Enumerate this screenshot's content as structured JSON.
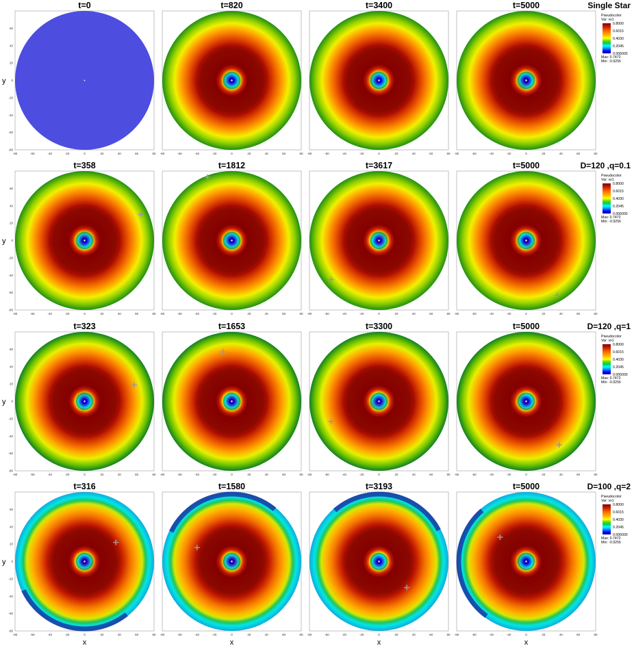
{
  "chart_data": {
    "type": "heatmap",
    "xlabel": "x",
    "ylabel": "y",
    "xlim": [
      -80,
      80
    ],
    "ylim": [
      -80,
      80
    ],
    "x_ticks": [
      "-80",
      "-60",
      "-40",
      "-20",
      "0",
      "20",
      "40",
      "60",
      "80"
    ],
    "y_ticks": [
      "60",
      "40",
      "20",
      "0",
      "-20",
      "-40",
      "-60",
      "-80"
    ],
    "legend": {
      "title": "Pseudocolor",
      "var": "Var: vx1",
      "ticks": [
        "0.8000",
        "0.6015",
        "0.4030",
        "0.2045",
        "0.006000"
      ],
      "max": "Max: 0.7472",
      "min": "Min: -0.9256",
      "colormap": [
        "#800000",
        "#cc1f00",
        "#ff6600",
        "#ffaa00",
        "#ffff00",
        "#99ee00",
        "#00cc55",
        "#00ffff",
        "#0099ff",
        "#0000ff",
        "#000080"
      ]
    },
    "rows": [
      {
        "label": "Single Star",
        "panels": [
          {
            "t": "t=0",
            "style": "flat",
            "companion": null
          },
          {
            "t": "t=820",
            "style": "disk",
            "companion": null
          },
          {
            "t": "t=3400",
            "style": "disk",
            "companion": null
          },
          {
            "t": "t=5000",
            "style": "disk",
            "companion": null
          }
        ]
      },
      {
        "label": "D=120 ,q=0.1",
        "panels": [
          {
            "t": "t=358",
            "style": "disk",
            "companion": [
              65,
              30
            ]
          },
          {
            "t": "t=1812",
            "style": "disk",
            "companion": [
              -28,
              73
            ]
          },
          {
            "t": "t=3617",
            "style": "disk",
            "companion": [
              -55,
              -45
            ]
          },
          {
            "t": "t=5000",
            "style": "disk",
            "companion": [
              36,
              -63
            ]
          }
        ]
      },
      {
        "label": "D=120 ,q=1",
        "panels": [
          {
            "t": "t=323",
            "style": "disk_q1",
            "companion": [
              57,
              19
            ]
          },
          {
            "t": "t=1653",
            "style": "disk_q1",
            "companion": [
              -10,
              57
            ]
          },
          {
            "t": "t=3300",
            "style": "disk_q1",
            "companion": [
              -55,
              -23
            ]
          },
          {
            "t": "t=5000",
            "style": "disk_q1",
            "companion": [
              38,
              -50
            ]
          }
        ]
      },
      {
        "label": "D=100 ,q=2",
        "panels": [
          {
            "t": "t=316",
            "style": "perturbed",
            "companion": [
              36,
              22
            ]
          },
          {
            "t": "t=1580",
            "style": "perturbed",
            "companion": [
              -40,
              16
            ]
          },
          {
            "t": "t=3193",
            "style": "perturbed",
            "companion": [
              32,
              -30
            ]
          },
          {
            "t": "t=5000",
            "style": "perturbed",
            "companion": [
              -30,
              28
            ]
          }
        ]
      }
    ]
  }
}
